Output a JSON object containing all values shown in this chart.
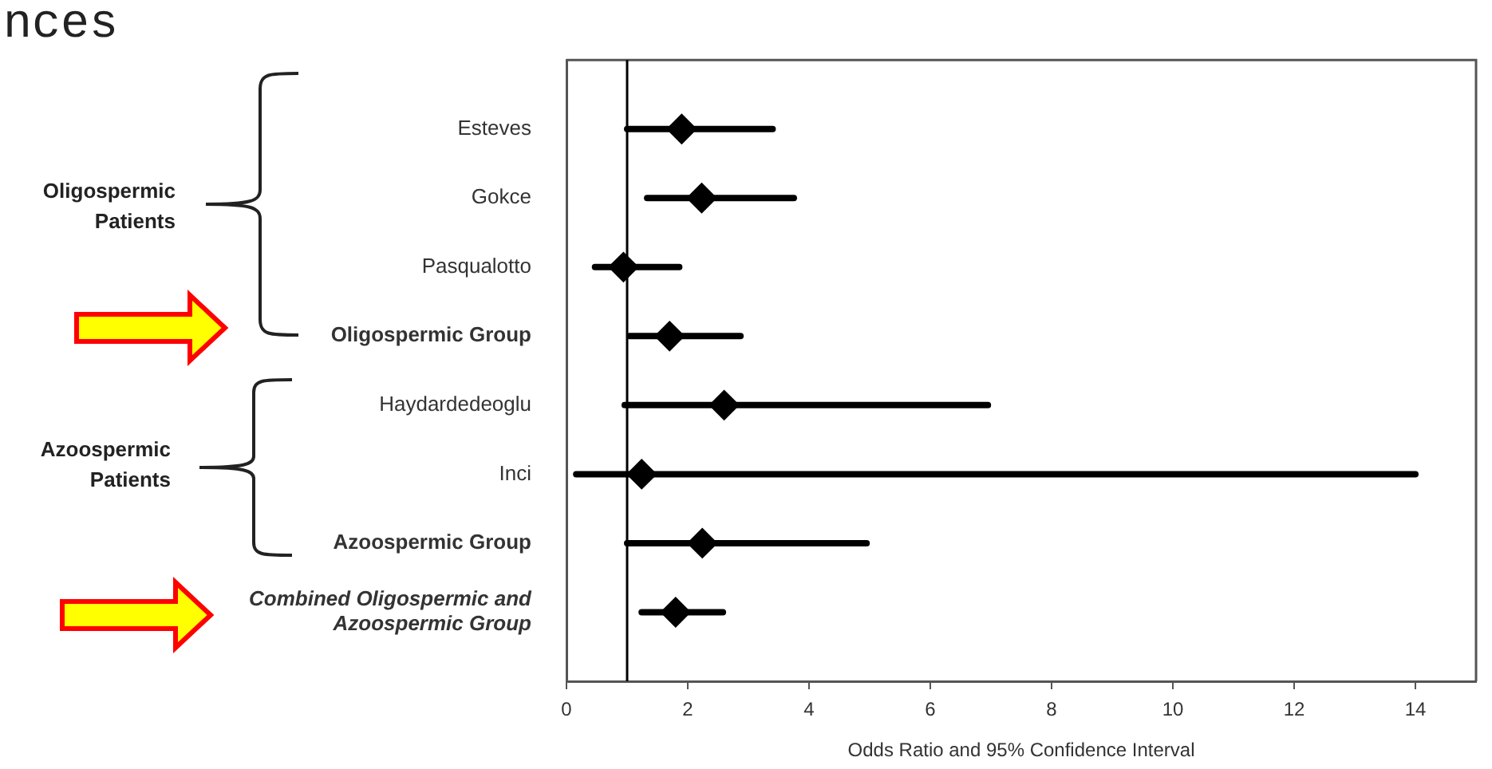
{
  "chart_data": {
    "type": "scatter",
    "orientation": "horizontal",
    "title": "nces",
    "xlabel": "Odds Ratio and 95% Confidence Interval",
    "categories": [
      "Esteves",
      "Gokce",
      "Pasqualotto",
      "Oligospermic Group",
      "Haydardedeoglu",
      "Inci",
      "Azoospermic Group",
      "Combined Oligospermic and Azoospermic Group"
    ],
    "values": [
      1.9,
      2.23,
      0.94,
      1.7,
      2.6,
      1.24,
      2.24,
      1.8
    ],
    "errors": [
      [
        1.0,
        3.4
      ],
      [
        1.33,
        3.75
      ],
      [
        0.47,
        1.86
      ],
      [
        1.04,
        2.87
      ],
      [
        0.96,
        6.95
      ],
      [
        0.16,
        14.0
      ],
      [
        1.0,
        4.95
      ],
      [
        1.24,
        2.58
      ]
    ],
    "color": "#000000",
    "marker": "diamond",
    "xlim": [
      0,
      15
    ],
    "xticks": [
      0,
      2,
      4,
      6,
      8,
      10,
      12,
      14
    ],
    "ref_lines": [
      {
        "axis": "x",
        "value": 1,
        "color": "#000000"
      }
    ],
    "annotations": [
      "Oligospermic Patients",
      "Azoospermic Patients"
    ],
    "grid": false,
    "legend": false
  }
}
